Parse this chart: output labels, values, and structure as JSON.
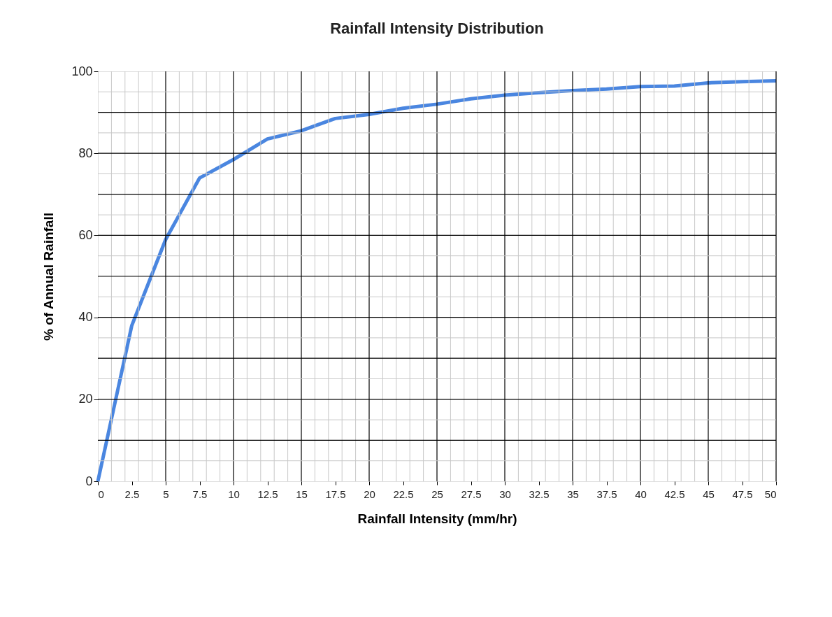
{
  "chart_data": {
    "type": "line",
    "title": "Rainfall Intensity Distribution",
    "xlabel": "Rainfall Intensity  (mm/hr)",
    "ylabel": "% of Annual Rainfall",
    "x": [
      0,
      2.5,
      5,
      7.5,
      10,
      12.5,
      15,
      17.5,
      20,
      22.5,
      25,
      27.5,
      30,
      32.5,
      35,
      37.5,
      40,
      42.5,
      45,
      47.5,
      50
    ],
    "series": [
      {
        "color": "#4a86e0",
        "values": [
          0,
          38,
          59,
          74,
          78.5,
          83.5,
          85.5,
          88.5,
          89.5,
          91,
          92,
          93.3,
          94.2,
          94.8,
          95.3,
          95.7,
          96.3,
          96.4,
          97.2,
          97.5,
          97.7
        ]
      }
    ],
    "xlim": [
      0,
      50
    ],
    "ylim": [
      0,
      100
    ],
    "xticks": [
      0,
      2.5,
      5,
      7.5,
      10,
      12.5,
      15,
      17.5,
      20,
      22.5,
      25,
      27.5,
      30,
      32.5,
      35,
      37.5,
      40,
      42.5,
      45,
      47.5,
      50
    ],
    "yticks": [
      0,
      20,
      40,
      60,
      80,
      100
    ],
    "grid": true,
    "marker": "none",
    "line_style": "solid"
  }
}
